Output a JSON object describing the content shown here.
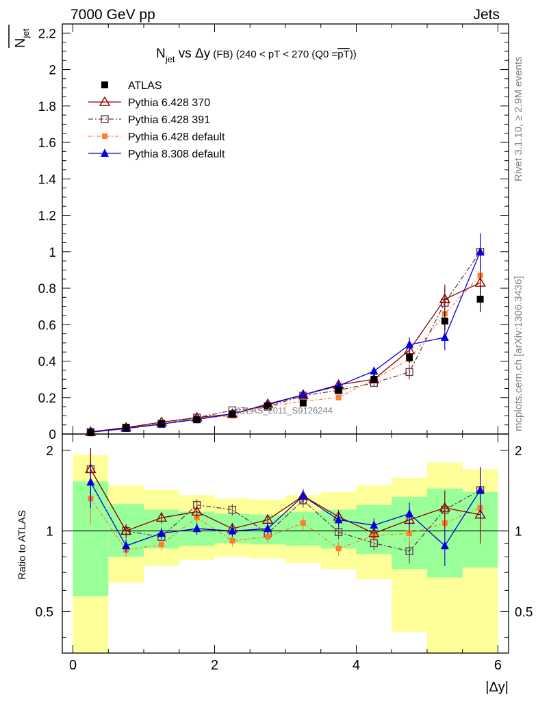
{
  "header": {
    "left": "7000 GeV pp",
    "right": "Jets"
  },
  "side_labels": {
    "rivet": "Rivet 3.1.10, ≥ 2.9M events",
    "mcplots": "mcplots.cern.ch [arXiv:1306.3436]"
  },
  "watermark": "ATLAS_2011_S9126244",
  "title": {
    "main": "N",
    "main_sub": "jet",
    "vs": " vs Δy",
    "detail": " (FB) (240 < pT < 270 (Q0 =",
    "overline": "pT",
    "close": "))"
  },
  "ylabel_top": {
    "base": "N",
    "sub": "jet"
  },
  "ylabel_bottom": "Ratio to ATLAS",
  "xlabel": "|Δy|",
  "colors": {
    "band_outer": "#ffff99",
    "band_inner": "#99ff99",
    "atlas": "#000000",
    "p370": "#8b0000",
    "p391": "#6b3a4c",
    "p6def": "#ff7f2a",
    "p8def": "#0000dd"
  },
  "chart_data": {
    "type": "line",
    "x": [
      0.25,
      0.75,
      1.25,
      1.75,
      2.25,
      2.75,
      3.25,
      3.75,
      4.25,
      4.75,
      5.25,
      5.75
    ],
    "x_edges": [
      0,
      0.5,
      1.0,
      1.5,
      2.0,
      2.5,
      3.0,
      3.5,
      4.0,
      4.5,
      5.0,
      5.5,
      6.0
    ],
    "xlim": [
      -0.15,
      6.15
    ],
    "top": {
      "ylim": [
        0,
        2.25
      ],
      "yticks": [
        0,
        0.2,
        0.4,
        0.6,
        0.8,
        1,
        1.2,
        1.4,
        1.6,
        1.8,
        2,
        2.2
      ]
    },
    "bottom": {
      "ylim": [
        0.35,
        2.3
      ],
      "log": true,
      "yticks": [
        0.5,
        1,
        2
      ]
    },
    "xticks": [
      0,
      2,
      4,
      6
    ],
    "series": [
      {
        "name": "ATLAS",
        "key": "atlas",
        "values": [
          0.007,
          0.035,
          0.058,
          0.078,
          0.11,
          0.155,
          0.17,
          0.24,
          0.3,
          0.42,
          0.62,
          0.74
        ],
        "errors": [
          0.002,
          0.004,
          0.005,
          0.006,
          0.008,
          0.01,
          0.012,
          0.015,
          0.02,
          0.03,
          0.05,
          0.07
        ]
      },
      {
        "name": "Pythia 6.428 370",
        "key": "p370",
        "values": [
          0.012,
          0.035,
          0.065,
          0.09,
          0.11,
          0.165,
          0.215,
          0.27,
          0.3,
          0.46,
          0.74,
          0.83
        ],
        "errors": [
          0.002,
          0.003,
          0.004,
          0.005,
          0.005,
          0.006,
          0.007,
          0.01,
          0.015,
          0.03,
          0.08,
          0.1
        ]
      },
      {
        "name": "Pythia 6.428 391",
        "key": "p391",
        "values": [
          0.012,
          0.035,
          0.055,
          0.09,
          0.13,
          0.15,
          0.21,
          0.24,
          0.28,
          0.34,
          0.72,
          1.0
        ],
        "errors": [
          0.002,
          0.003,
          0.004,
          0.005,
          0.005,
          0.006,
          0.007,
          0.01,
          0.015,
          0.04,
          0.08,
          0.1
        ]
      },
      {
        "name": "Pythia 6.428 default",
        "key": "p6def",
        "values": [
          0.009,
          0.03,
          0.052,
          0.088,
          0.1,
          0.15,
          0.18,
          0.2,
          0.3,
          0.41,
          0.66,
          0.87
        ],
        "errors": [
          0.002,
          0.003,
          0.004,
          0.005,
          0.005,
          0.006,
          0.007,
          0.01,
          0.015,
          0.03,
          0.07,
          0.1
        ]
      },
      {
        "name": "Pythia 8.308 default",
        "key": "p8def",
        "values": [
          0.01,
          0.03,
          0.055,
          0.08,
          0.11,
          0.16,
          0.215,
          0.265,
          0.345,
          0.49,
          0.53,
          1.0
        ],
        "errors": [
          0.002,
          0.003,
          0.004,
          0.005,
          0.005,
          0.006,
          0.007,
          0.01,
          0.015,
          0.04,
          0.07,
          0.1
        ]
      }
    ],
    "ratio_bands": {
      "outer": [
        [
          0.35,
          1.92
        ],
        [
          0.64,
          1.48
        ],
        [
          0.74,
          1.42
        ],
        [
          0.78,
          1.36
        ],
        [
          0.8,
          1.32
        ],
        [
          0.79,
          1.31
        ],
        [
          0.76,
          1.36
        ],
        [
          0.72,
          1.4
        ],
        [
          0.66,
          1.48
        ],
        [
          0.42,
          1.58
        ],
        [
          0.35,
          1.8
        ],
        [
          0.35,
          1.7
        ]
      ],
      "inner": [
        [
          0.57,
          1.53
        ],
        [
          0.8,
          1.26
        ],
        [
          0.86,
          1.2
        ],
        [
          0.88,
          1.18
        ],
        [
          0.9,
          1.16
        ],
        [
          0.89,
          1.15
        ],
        [
          0.88,
          1.18
        ],
        [
          0.86,
          1.2
        ],
        [
          0.82,
          1.25
        ],
        [
          0.72,
          1.34
        ],
        [
          0.67,
          1.44
        ],
        [
          0.73,
          1.4
        ]
      ]
    },
    "ratios": {
      "p370": [
        1.7,
        1.0,
        1.12,
        1.18,
        1.02,
        1.1,
        1.35,
        1.13,
        0.98,
        1.1,
        1.22,
        1.15
      ],
      "p391": [
        1.7,
        1.0,
        0.95,
        1.25,
        1.2,
        0.98,
        1.3,
        0.99,
        0.9,
        0.84,
        1.2,
        1.42
      ],
      "p6def": [
        1.32,
        0.85,
        0.89,
        1.12,
        0.92,
        0.95,
        1.07,
        0.86,
        0.96,
        0.98,
        1.07,
        1.22
      ],
      "p8def": [
        1.52,
        0.88,
        0.98,
        1.02,
        1.0,
        1.02,
        1.35,
        1.1,
        1.05,
        1.16,
        0.88,
        1.42
      ]
    },
    "ratio_errors": [
      0.2,
      0.06,
      0.05,
      0.05,
      0.05,
      0.05,
      0.06,
      0.06,
      0.06,
      0.1,
      0.16,
      0.22
    ]
  }
}
